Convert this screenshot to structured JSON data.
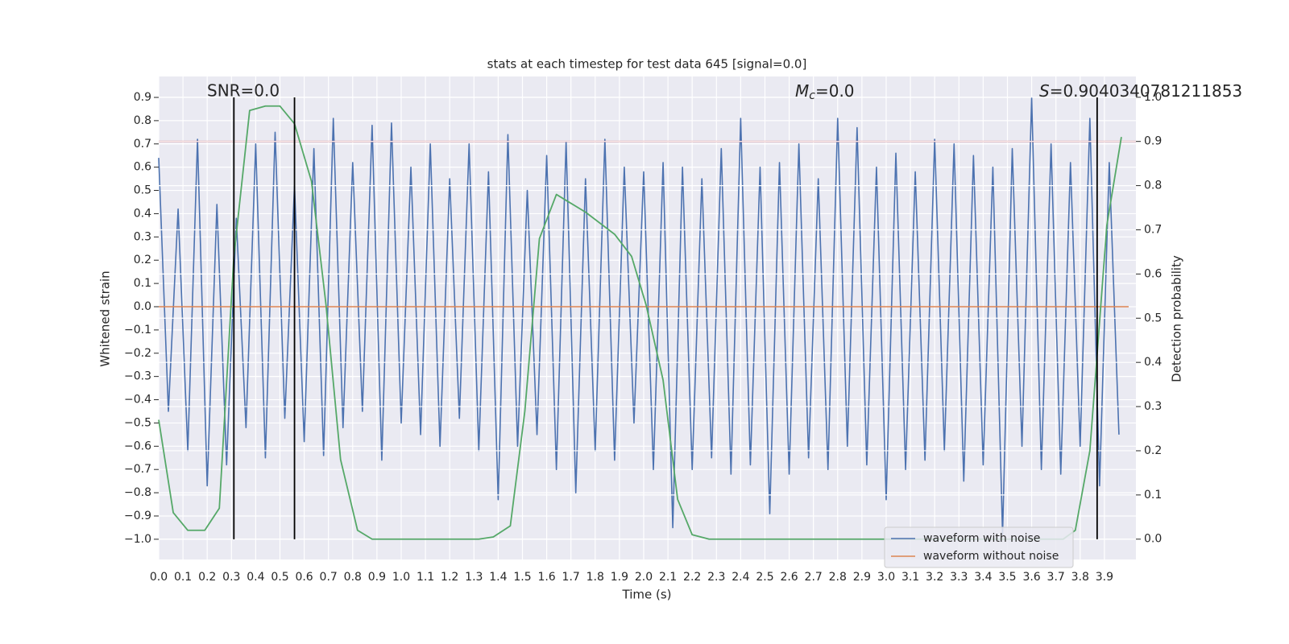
{
  "chart_data": {
    "type": "line",
    "title": "stats at each timestep for test data 645 [signal=0.0]",
    "x_label": "Time (s)",
    "y_label": "Whitened strain",
    "y2_label": "Detection probability",
    "annotations": {
      "snr": "SNR=0.0",
      "mc": [
        "M",
        "c",
        "=0.0"
      ],
      "s": [
        "S",
        "=0.9040340781211853"
      ]
    },
    "grid": true,
    "legend_position": "lower right",
    "xlim": [
      0,
      4.03
    ],
    "ylim": [
      -1.087,
      0.99
    ],
    "y2lim": [
      -0.046,
      1.047
    ],
    "xticks": [
      {
        "value": 0,
        "label": "0.0"
      },
      0.1,
      0.2,
      0.3,
      0.4,
      0.5,
      0.6,
      0.7,
      0.8,
      0.9,
      {
        "value": 1,
        "label": "1.0"
      },
      1.1,
      1.2,
      1.3,
      1.4,
      1.5,
      1.6,
      1.7,
      1.8,
      1.9,
      {
        "value": 2,
        "label": "2.0"
      },
      2.1,
      2.2,
      2.3,
      2.4,
      2.5,
      2.6,
      2.7,
      2.8,
      2.9,
      {
        "value": 3,
        "label": "3.0"
      },
      3.1,
      3.2,
      3.3,
      3.4,
      3.5,
      3.6,
      3.7,
      3.8,
      3.9
    ],
    "yticks": [
      {
        "value": -1,
        "label": "−1.0"
      },
      {
        "value": -0.9,
        "label": "−0.9"
      },
      {
        "value": -0.8,
        "label": "−0.8"
      },
      {
        "value": -0.7,
        "label": "−0.7"
      },
      {
        "value": -0.6,
        "label": "−0.6"
      },
      {
        "value": -0.5,
        "label": "−0.5"
      },
      {
        "value": -0.4,
        "label": "−0.4"
      },
      {
        "value": -0.3,
        "label": "−0.3"
      },
      {
        "value": -0.2,
        "label": "−0.2"
      },
      {
        "value": -0.1,
        "label": "−0.1"
      },
      {
        "value": 0,
        "label": "0.0"
      },
      0.1,
      0.2,
      0.3,
      0.4,
      0.5,
      0.6,
      0.7,
      0.8,
      0.9
    ],
    "y2ticks": [
      {
        "value": 0,
        "label": "0.0"
      },
      0.1,
      0.2,
      0.3,
      0.4,
      0.5,
      0.6,
      0.7,
      0.8,
      0.9,
      {
        "value": 1,
        "label": "1.0"
      }
    ],
    "series": [
      {
        "name": "waveform with noise",
        "color": "#4c72b0",
        "x": [
          0,
          0.04,
          0.08,
          0.12,
          0.16,
          0.2,
          0.24,
          0.28,
          0.32,
          0.36,
          0.4,
          0.44,
          0.48,
          0.52,
          0.56,
          0.6,
          0.64,
          0.68,
          0.72,
          0.76,
          0.8,
          0.84,
          0.88,
          0.92,
          0.96,
          1,
          1.04,
          1.08,
          1.12,
          1.16,
          1.2,
          1.24,
          1.28,
          1.32,
          1.36,
          1.4,
          1.44,
          1.48,
          1.52,
          1.56,
          1.6,
          1.64,
          1.68,
          1.72,
          1.76,
          1.8,
          1.84,
          1.88,
          1.92,
          1.96,
          2,
          2.04,
          2.08,
          2.12,
          2.16,
          2.2,
          2.24,
          2.28,
          2.32,
          2.36,
          2.4,
          2.44,
          2.48,
          2.52,
          2.56,
          2.6,
          2.64,
          2.68,
          2.72,
          2.76,
          2.8,
          2.84,
          2.88,
          2.92,
          2.96,
          3,
          3.04,
          3.08,
          3.12,
          3.16,
          3.2,
          3.24,
          3.28,
          3.32,
          3.36,
          3.4,
          3.44,
          3.48,
          3.52,
          3.56,
          3.6,
          3.64,
          3.68,
          3.72,
          3.76,
          3.8,
          3.84,
          3.88,
          3.92,
          3.96
        ],
        "values": [
          0.64,
          -0.45,
          0.42,
          -0.62,
          0.72,
          -0.77,
          0.44,
          -0.68,
          0.38,
          -0.52,
          0.7,
          -0.65,
          0.75,
          -0.48,
          0.52,
          -0.58,
          0.68,
          -0.64,
          0.81,
          -0.52,
          0.62,
          -0.45,
          0.78,
          -0.66,
          0.79,
          -0.5,
          0.6,
          -0.55,
          0.7,
          -0.6,
          0.55,
          -0.48,
          0.7,
          -0.62,
          0.58,
          -0.83,
          0.74,
          -0.6,
          0.5,
          -0.55,
          0.65,
          -0.7,
          0.71,
          -0.8,
          0.55,
          -0.62,
          0.72,
          -0.66,
          0.6,
          -0.5,
          0.58,
          -0.7,
          0.62,
          -0.95,
          0.6,
          -0.7,
          0.55,
          -0.65,
          0.68,
          -0.72,
          0.81,
          -0.68,
          0.6,
          -0.89,
          0.62,
          -0.72,
          0.7,
          -0.65,
          0.55,
          -0.7,
          0.81,
          -0.6,
          0.77,
          -0.68,
          0.6,
          -0.83,
          0.66,
          -0.7,
          0.58,
          -0.66,
          0.72,
          -0.62,
          0.7,
          -0.75,
          0.65,
          -0.68,
          0.6,
          -0.98,
          0.68,
          -0.6,
          0.9,
          -0.7,
          0.7,
          -0.72,
          0.62,
          -0.6,
          0.81,
          -0.77,
          0.62,
          -0.55
        ]
      },
      {
        "name": "waveform without noise",
        "color": "#dd8452",
        "x": [
          0,
          4.0
        ],
        "values": [
          0,
          0
        ]
      }
    ],
    "probability": {
      "color": "#55a868",
      "axis": "y2",
      "x": [
        0,
        0.06,
        0.12,
        0.19,
        0.25,
        0.31,
        0.375,
        0.44,
        0.5,
        0.56,
        0.63,
        0.69,
        0.75,
        0.82,
        0.88,
        1.32,
        1.38,
        1.45,
        1.51,
        1.57,
        1.64,
        1.7,
        1.76,
        1.88,
        1.95,
        2.01,
        2.08,
        2.14,
        2.2,
        2.27,
        3.73,
        3.78,
        3.84,
        3.91,
        3.97
      ],
      "values": [
        0.27,
        0.06,
        0.02,
        0.02,
        0.07,
        0.64,
        0.97,
        0.98,
        0.98,
        0.94,
        0.81,
        0.53,
        0.18,
        0.02,
        0,
        0,
        0.005,
        0.03,
        0.29,
        0.68,
        0.78,
        0.76,
        0.74,
        0.69,
        0.64,
        0.53,
        0.36,
        0.09,
        0.01,
        0,
        0,
        0.02,
        0.2,
        0.71,
        0.91
      ]
    },
    "threshold": {
      "value": 0.9,
      "axis": "y2",
      "color": "#c44e52"
    },
    "vlines": {
      "values": [
        0.31,
        0.56,
        3.87
      ],
      "span": [
        -1,
        0.9
      ],
      "color": "#000000"
    }
  }
}
